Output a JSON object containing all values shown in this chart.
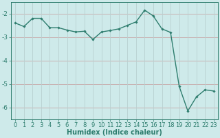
{
  "x": [
    0,
    1,
    2,
    3,
    4,
    5,
    6,
    7,
    8,
    9,
    10,
    11,
    12,
    13,
    14,
    15,
    16,
    17,
    18,
    19,
    20,
    21,
    22,
    23
  ],
  "y": [
    -2.4,
    -2.55,
    -2.2,
    -2.2,
    -2.6,
    -2.6,
    -2.7,
    -2.78,
    -2.75,
    -3.1,
    -2.78,
    -2.72,
    -2.65,
    -2.5,
    -2.35,
    -1.85,
    -2.1,
    -2.65,
    -2.8,
    -5.1,
    -6.15,
    -5.55,
    -5.25,
    -5.3
  ],
  "line_color": "#2e7d6e",
  "marker": "D",
  "marker_size": 1.8,
  "bg_color": "#ceeaea",
  "grid_color_h": "#c8a8a8",
  "grid_color_v": "#b8d0d0",
  "xlabel": "Humidex (Indice chaleur)",
  "ylim": [
    -6.5,
    -1.5
  ],
  "xlim": [
    -0.5,
    23.5
  ],
  "yticks": [
    -6,
    -5,
    -4,
    -3,
    -2
  ],
  "xtick_labels": [
    "0",
    "1",
    "2",
    "3",
    "4",
    "5",
    "6",
    "7",
    "8",
    "9",
    "10",
    "11",
    "12",
    "13",
    "14",
    "15",
    "16",
    "17",
    "18",
    "19",
    "20",
    "21",
    "22",
    "23"
  ],
  "xlabel_fontsize": 7,
  "tick_fontsize": 6.5,
  "line_width": 1.0
}
